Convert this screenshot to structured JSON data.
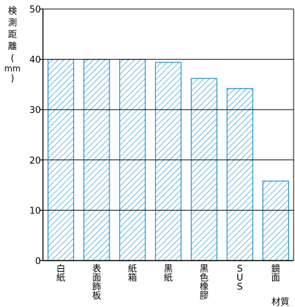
{
  "chart_data": {
    "type": "bar",
    "ylabel": [
      "検",
      "測",
      "距",
      "離",
      "(",
      "mm",
      ")"
    ],
    "xlabel": "材質",
    "ylim": [
      0,
      50
    ],
    "yticks": [
      0,
      10,
      20,
      30,
      40,
      50
    ],
    "grid": true,
    "categories": [
      [
        "白",
        "紙"
      ],
      [
        "表",
        "面",
        "飾",
        "板"
      ],
      [
        "紙",
        "箱"
      ],
      [
        "黒",
        "紙"
      ],
      [
        "黒",
        "色",
        "橡",
        "膠"
      ],
      [
        "S",
        "U",
        "S"
      ],
      [
        "鏡",
        "面"
      ]
    ],
    "values": [
      40,
      40,
      40,
      39.4,
      36.2,
      34.2,
      15.8
    ],
    "colors": {
      "bar_fill": "#ffffff",
      "bar_hatch": "#1a8fd0",
      "bar_edge": "#1a8fd0",
      "grid": "#000000",
      "axis": "#000000"
    }
  }
}
